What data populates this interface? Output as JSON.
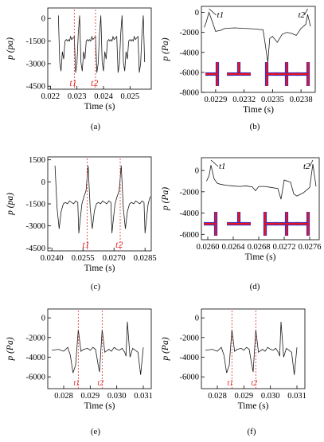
{
  "chart_data": [
    {
      "type": "line",
      "panel_label": "(a)",
      "xlabel": "Time (s)",
      "ylabel": "p (pa)",
      "xlim": [
        0.0219,
        0.0258
      ],
      "ylim": [
        -4700,
        700
      ],
      "xticks": [
        0.022,
        0.023,
        0.024,
        0.025
      ],
      "xtick_labels": [
        "0.022",
        "0.023",
        "0.024",
        "0.025"
      ],
      "yticks": [
        0,
        -1500,
        -3000,
        -4500
      ],
      "ytick_labels": [
        "0",
        "-1500",
        "-3000",
        "-4500"
      ],
      "markers": [
        {
          "label": "t1",
          "x": 0.0229
        },
        {
          "label": "t2",
          "x": 0.0237
        }
      ],
      "period": 0.0008,
      "series": [
        {
          "x": [
            0,
            5e-05,
            0.0001,
            0.00015,
            0.0002,
            0.00025,
            0.0003,
            0.00034,
            0.00038,
            0.00042,
            0.00046,
            0.0005,
            0.00055,
            0.0006,
            0.00065,
            0.0007,
            0.00075,
            0.0008
          ],
          "y": [
            200,
            -2900,
            -3500,
            -2200,
            -2700,
            -1500,
            -1400,
            -1500,
            -1400,
            -1500,
            -1200,
            -1400,
            -1300,
            -1200,
            -3600,
            -3000,
            -1000,
            200
          ]
        }
      ],
      "x_start": 0.0223,
      "x_end": 0.02555
    },
    {
      "type": "line",
      "panel_label": "(b)",
      "xlabel": "Time (s)",
      "ylabel": "p (Pa)",
      "xlim": [
        0.02275,
        0.02395
      ],
      "ylim": [
        -8000,
        600
      ],
      "xticks": [
        0.0229,
        0.0232,
        0.0235,
        0.0238
      ],
      "xtick_labels": [
        "0.0229",
        "0.0232",
        "0.0235",
        "0.0238"
      ],
      "yticks": [
        0,
        -2000,
        -4000,
        -6000,
        -8000
      ],
      "ytick_labels": [
        "0",
        "-2000",
        "-4000",
        "-6000",
        "-8000"
      ],
      "markers": [
        {
          "label": "t1",
          "x": 0.02283
        },
        {
          "label": "t2",
          "x": 0.02387
        }
      ],
      "series": [
        {
          "x": [
            0.02278,
            0.0228,
            0.02283,
            0.02286,
            0.0229,
            0.02295,
            0.023,
            0.0231,
            0.0232,
            0.0233,
            0.0234,
            0.02342,
            0.02345,
            0.02347,
            0.0235,
            0.02355,
            0.0236,
            0.02365,
            0.0237,
            0.02375,
            0.0238,
            0.02385,
            0.02387,
            0.0239
          ],
          "y": [
            -1500,
            -1000,
            0,
            -800,
            -1900,
            -1800,
            -1600,
            -1550,
            -1600,
            -1650,
            -1750,
            -3000,
            -5000,
            -2600,
            -2400,
            -3000,
            -2200,
            -2000,
            -2100,
            -2300,
            -1600,
            -1200,
            -200,
            -1400
          ]
        }
      ],
      "insets": 5
    },
    {
      "type": "line",
      "panel_label": "(c)",
      "xlabel": "Time (s)",
      "ylabel": "p (pa)",
      "xlim": [
        0.0238,
        0.0288
      ],
      "ylim": [
        -4700,
        1700
      ],
      "xticks": [
        0.024,
        0.0255,
        0.027,
        0.0285
      ],
      "xtick_labels": [
        "0.0240",
        "0.0255",
        "0.0270",
        "0.0285"
      ],
      "yticks": [
        1500,
        0,
        -1500,
        -3000,
        -4500
      ],
      "ytick_labels": [
        "1500",
        "0",
        "-1500",
        "-3000",
        "-4500"
      ],
      "markers": [
        {
          "label": "t1",
          "x": 0.0257
        },
        {
          "label": "t2",
          "x": 0.0273
        }
      ],
      "period": 0.0016,
      "series": [
        {
          "x": [
            0,
            0.0001,
            0.0002,
            0.0003,
            0.0004,
            0.0005,
            0.0006,
            0.0007,
            0.0008,
            0.0009,
            0.001,
            0.0011,
            0.00115,
            0.0012,
            0.0013,
            0.0014,
            0.0015,
            0.0016
          ],
          "y": [
            1100,
            -1800,
            -3200,
            -2000,
            -1500,
            -1400,
            -1500,
            -1300,
            -1400,
            -1500,
            -1300,
            -1400,
            -3500,
            -2800,
            -1500,
            -1000,
            -600,
            1100
          ]
        }
      ],
      "x_start": 0.02415,
      "x_end": 0.02875
    },
    {
      "type": "line",
      "panel_label": "(d)",
      "xlabel": "Time (s)",
      "ylabel": "p (Pa)",
      "xlim": [
        0.0259,
        0.02775
      ],
      "ylim": [
        -6500,
        1200
      ],
      "xticks": [
        0.026,
        0.0264,
        0.0268,
        0.0272,
        0.0276
      ],
      "xtick_labels": [
        "0.0260",
        "0.0264",
        "0.0268",
        "0.0272",
        "0.0276"
      ],
      "yticks": [
        0,
        -2000,
        -4000,
        -6000
      ],
      "ytick_labels": [
        "0",
        "-2000",
        "-4000",
        "-6000"
      ],
      "markers": [
        {
          "label": "t1",
          "x": 0.02605
        },
        {
          "label": "t2",
          "x": 0.02765
        }
      ],
      "series": [
        {
          "x": [
            0.02598,
            0.02602,
            0.02605,
            0.0261,
            0.02615,
            0.0262,
            0.0263,
            0.0264,
            0.0265,
            0.0266,
            0.0267,
            0.02675,
            0.0268,
            0.0269,
            0.027,
            0.0271,
            0.02715,
            0.0272,
            0.0273,
            0.02735,
            0.0274,
            0.0275,
            0.0276,
            0.02765,
            0.0277
          ],
          "y": [
            -1000,
            -500,
            500,
            -800,
            -1200,
            -1300,
            -1400,
            -1450,
            -1500,
            -1450,
            -1550,
            -1900,
            -1500,
            -1500,
            -1600,
            -1700,
            -2700,
            -900,
            -1100,
            -2200,
            -2400,
            -2100,
            -1600,
            600,
            -1500
          ]
        }
      ],
      "insets": 5
    },
    {
      "type": "line",
      "panel_label": "(e)",
      "xlabel": "Time (s)",
      "ylabel": "p (Pa)",
      "xlim": [
        0.0274,
        0.0313
      ],
      "ylim": [
        -7200,
        900
      ],
      "xticks": [
        0.028,
        0.029,
        0.03,
        0.031
      ],
      "xtick_labels": [
        "0.028",
        "0.029",
        "0.030",
        "0.031"
      ],
      "yticks": [
        0,
        -2000,
        -4000,
        -6000
      ],
      "ytick_labels": [
        "0",
        "-2000",
        "-4000",
        "-6000"
      ],
      "markers": [
        {
          "label": "t1",
          "x": 0.02855
        },
        {
          "label": "t2",
          "x": 0.02945
        }
      ],
      "series": [
        {
          "x": [
            0.02755,
            0.0278,
            0.028,
            0.02815,
            0.02825,
            0.02835,
            0.0284,
            0.02845,
            0.02855,
            0.02865,
            0.02875,
            0.0289,
            0.029,
            0.0291,
            0.0292,
            0.0293,
            0.02935,
            0.02945,
            0.02955,
            0.0297,
            0.0298,
            0.0299,
            0.03,
            0.0301,
            0.0302,
            0.0303,
            0.03035,
            0.0304,
            0.0305,
            0.0306,
            0.0307,
            0.0308,
            0.0309,
            0.031
          ],
          "y": [
            -3300,
            -3200,
            -3400,
            -3000,
            -3800,
            -5600,
            -5200,
            -4800,
            -1200,
            -3400,
            -3200,
            -3100,
            -3300,
            -3000,
            -3200,
            -4800,
            -5500,
            -1200,
            -3500,
            -3200,
            -3400,
            -3000,
            -3200,
            -3300,
            -3100,
            -3500,
            -3900,
            -400,
            -4000,
            -3100,
            -3300,
            -3500,
            -5800,
            -3000
          ]
        }
      ]
    },
    {
      "type": "line",
      "panel_label": "(f)",
      "xlabel": "Time (s)",
      "ylabel": "p (Pa)",
      "xlim": [
        0.0274,
        0.0313
      ],
      "ylim": [
        -7200,
        900
      ],
      "xticks": [
        0.028,
        0.029,
        0.03,
        0.031
      ],
      "xtick_labels": [
        "0.028",
        "0.029",
        "0.030",
        "0.031"
      ],
      "yticks": [
        0,
        -2000,
        -4000,
        -6000
      ],
      "ytick_labels": [
        "0",
        "-2000",
        "-4000",
        "-6000"
      ],
      "markers": [
        {
          "label": "t1",
          "x": 0.02855
        },
        {
          "label": "t2",
          "x": 0.02945
        }
      ],
      "series": [
        {
          "x": [
            0.02755,
            0.0278,
            0.028,
            0.02815,
            0.02825,
            0.02835,
            0.0284,
            0.02845,
            0.02855,
            0.02865,
            0.02875,
            0.0289,
            0.029,
            0.0291,
            0.0292,
            0.0293,
            0.02935,
            0.02945,
            0.02955,
            0.0297,
            0.0298,
            0.0299,
            0.03,
            0.0301,
            0.0302,
            0.0303,
            0.03035,
            0.0304,
            0.0305,
            0.0306,
            0.0307,
            0.0308,
            0.0309,
            0.031
          ],
          "y": [
            -3300,
            -3200,
            -3400,
            -3000,
            -3800,
            -5600,
            -5200,
            -4800,
            -1200,
            -3400,
            -3200,
            -3100,
            -3300,
            -3000,
            -3200,
            -4800,
            -5500,
            -1200,
            -3500,
            -3200,
            -3400,
            -3000,
            -3200,
            -3300,
            -3100,
            -3500,
            -3900,
            -400,
            -4000,
            -3100,
            -3300,
            -3500,
            -5800,
            -3000
          ]
        }
      ]
    }
  ],
  "colors": {
    "line": "#1a1a1a",
    "marker": "#e03030",
    "inset_red": "#e8141e",
    "inset_blue": "#1432e6",
    "axis": "#000000"
  }
}
